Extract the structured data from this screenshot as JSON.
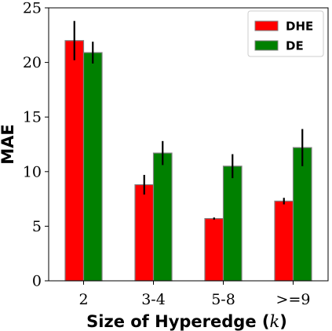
{
  "chart_data": {
    "type": "bar",
    "xlabel": "Size of Hyperedge (k)",
    "xlabel_parts": {
      "text": "Size of Hyperedge (",
      "var": "k",
      "close": ")"
    },
    "ylabel": "MAE",
    "ylim": [
      0,
      25
    ],
    "yticks": [
      "0",
      "5",
      "10",
      "15",
      "20",
      "25"
    ],
    "categories": [
      "2",
      "3-4",
      "5-8",
      ">=9"
    ],
    "legend_position": "top-right",
    "series": [
      {
        "name": "DHE",
        "color": "#ff0000",
        "values": [
          22.0,
          8.8,
          5.7,
          7.3
        ],
        "errors": [
          1.8,
          0.9,
          0.1,
          0.3
        ]
      },
      {
        "name": "DE",
        "color": "#008000",
        "values": [
          20.9,
          11.7,
          10.5,
          12.2
        ],
        "errors": [
          1.0,
          1.1,
          1.1,
          1.7
        ]
      }
    ]
  }
}
